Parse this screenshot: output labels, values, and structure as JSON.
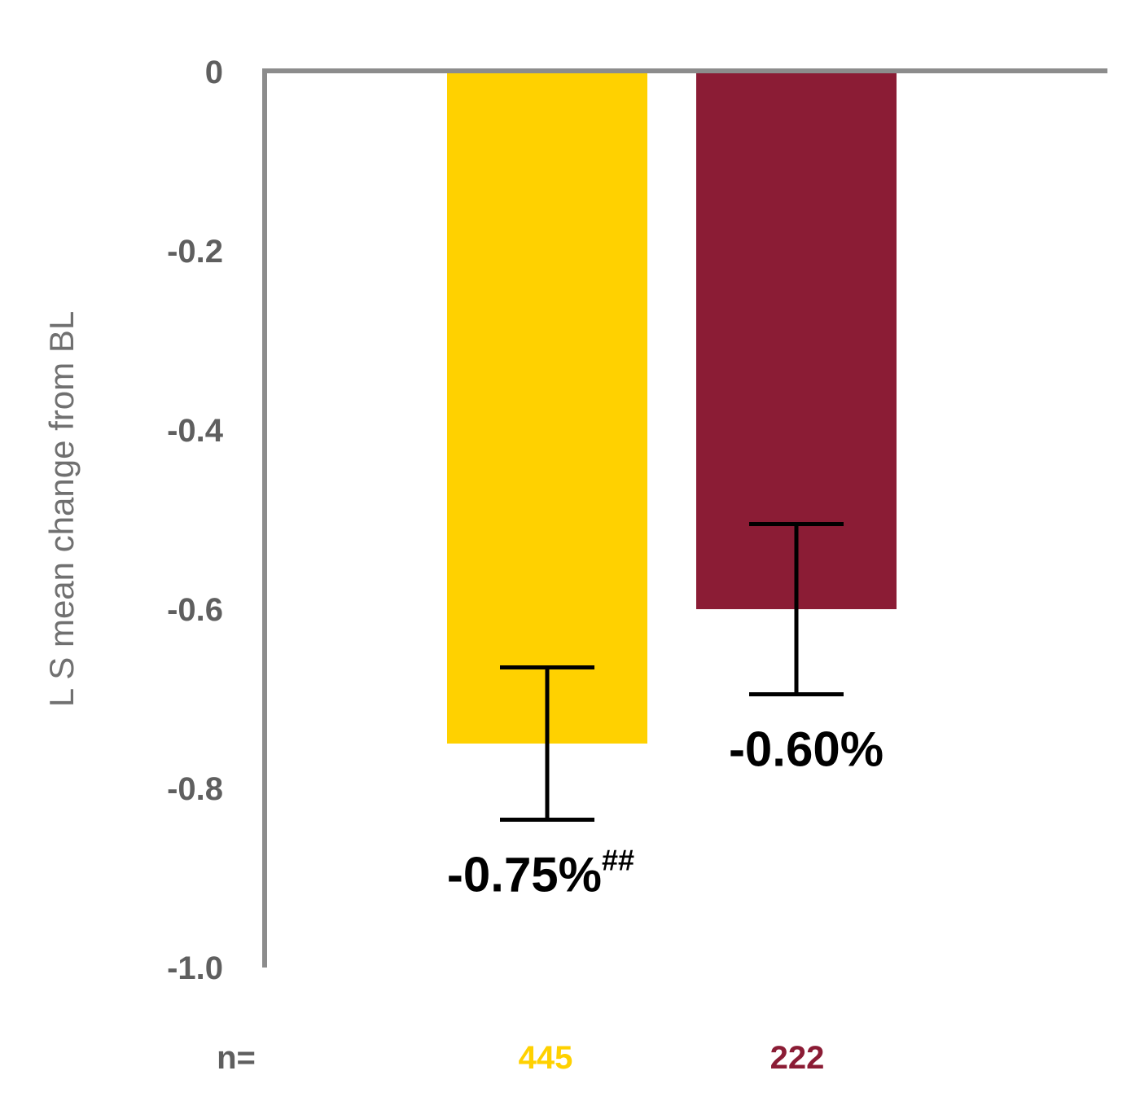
{
  "chart_data": {
    "type": "bar",
    "categories": [
      "",
      ""
    ],
    "values": [
      -0.75,
      -0.6
    ],
    "errors": [
      {
        "low": -0.835,
        "high": -0.665
      },
      {
        "low": -0.695,
        "high": -0.505
      }
    ],
    "value_labels": [
      "-0.75%",
      "-0.60%"
    ],
    "value_label_superscripts": [
      "##",
      ""
    ],
    "bar_colors": [
      "#FFD100",
      "#8B1C35"
    ],
    "ylabel": "L S mean change from BL",
    "xlabel": "",
    "ylim": [
      -1.0,
      0
    ],
    "yticks": [
      0,
      -0.2,
      -0.4,
      -0.6,
      -0.8,
      -1.0
    ],
    "ytick_labels": [
      "0",
      "-0.2",
      "-0.4",
      "-0.6",
      "-0.8",
      "-1.0"
    ],
    "n_prefix": "n=",
    "n_values": [
      "445",
      "222"
    ],
    "grid": false,
    "axis_color": "#8c8c8c"
  }
}
